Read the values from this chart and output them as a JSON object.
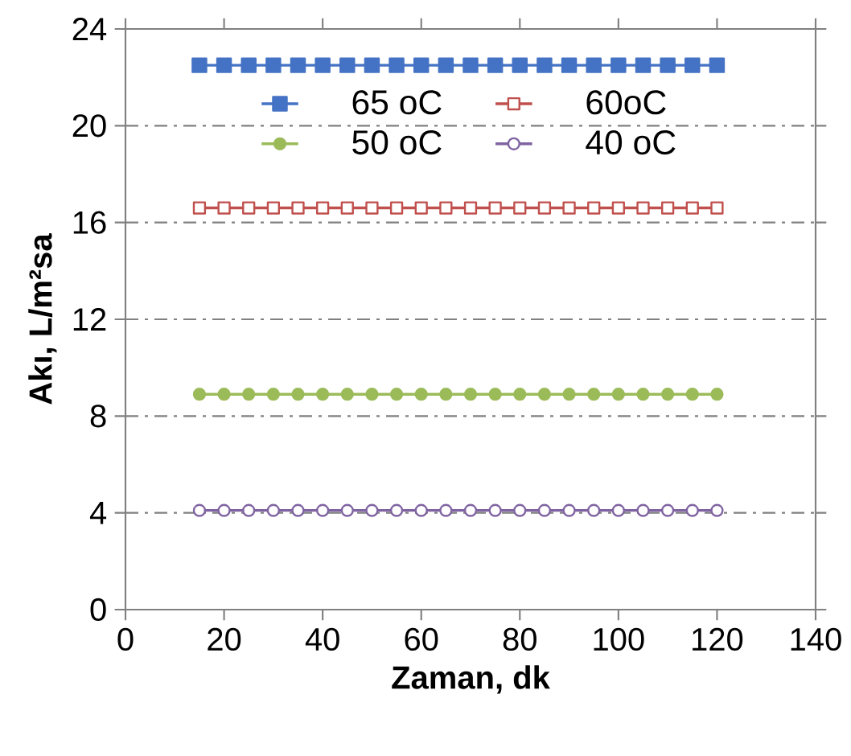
{
  "chart_data": {
    "type": "line",
    "xlabel": "Zaman, dk",
    "ylabel": "Akı, L/m²sa",
    "x": [
      15,
      20,
      25,
      30,
      35,
      40,
      45,
      50,
      55,
      60,
      65,
      70,
      75,
      80,
      85,
      90,
      95,
      100,
      105,
      110,
      115,
      120
    ],
    "series": [
      {
        "name": "65 oC",
        "color": "#4472c4",
        "marker": "square",
        "values": [
          22.5,
          22.5,
          22.5,
          22.5,
          22.5,
          22.5,
          22.5,
          22.5,
          22.5,
          22.5,
          22.5,
          22.5,
          22.5,
          22.5,
          22.5,
          22.5,
          22.5,
          22.5,
          22.5,
          22.5,
          22.5,
          22.5
        ]
      },
      {
        "name": "60oC",
        "color": "#c0504d",
        "marker": "square",
        "values": [
          16.6,
          16.6,
          16.6,
          16.6,
          16.6,
          16.6,
          16.6,
          16.6,
          16.6,
          16.6,
          16.6,
          16.6,
          16.6,
          16.6,
          16.6,
          16.6,
          16.6,
          16.6,
          16.6,
          16.6,
          16.6,
          16.6
        ]
      },
      {
        "name": "50 oC",
        "color": "#9bbb59",
        "marker": "circle",
        "values": [
          8.9,
          8.9,
          8.9,
          8.9,
          8.9,
          8.9,
          8.9,
          8.9,
          8.9,
          8.9,
          8.9,
          8.9,
          8.9,
          8.9,
          8.9,
          8.9,
          8.9,
          8.9,
          8.9,
          8.9,
          8.9,
          8.9
        ]
      },
      {
        "name": "40 oC",
        "color": "#8064a2",
        "marker": "circle",
        "values": [
          4.1,
          4.1,
          4.1,
          4.1,
          4.1,
          4.1,
          4.1,
          4.1,
          4.1,
          4.1,
          4.1,
          4.1,
          4.1,
          4.1,
          4.1,
          4.1,
          4.1,
          4.1,
          4.1,
          4.1,
          4.1,
          4.1
        ]
      }
    ],
    "xlim": [
      0,
      140
    ],
    "xticks": [
      0,
      20,
      40,
      60,
      80,
      100,
      120,
      140
    ],
    "ylim": [
      0,
      24
    ],
    "yticks": [
      0,
      4,
      8,
      12,
      16,
      20,
      24
    ],
    "grid": "y",
    "legend": "top",
    "line_style": "solid"
  }
}
